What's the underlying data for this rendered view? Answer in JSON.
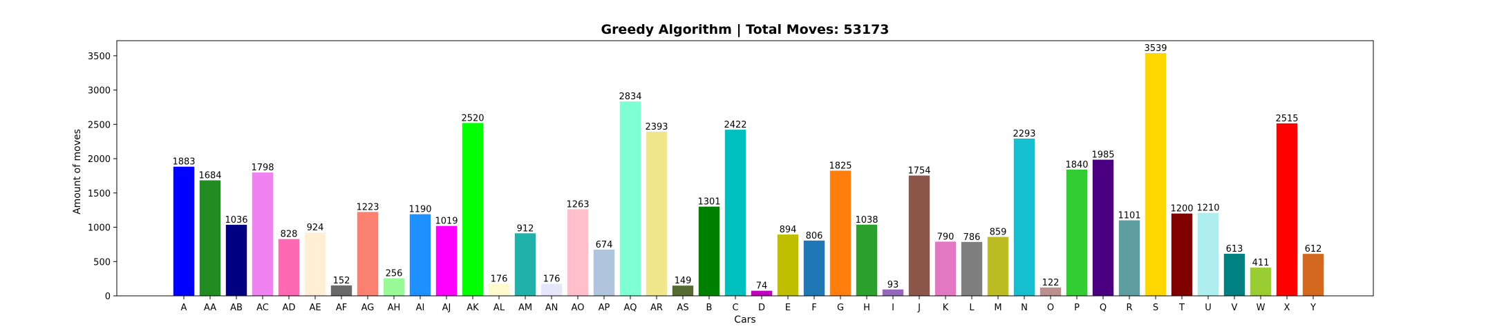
{
  "chart_data": {
    "type": "bar",
    "title": "Greedy Algorithm | Total Moves: 53173",
    "xlabel": "Cars",
    "ylabel": "Amount of moves",
    "ylim": [
      0,
      3720
    ],
    "yticks": [
      0,
      500,
      1000,
      1500,
      2000,
      2500,
      3000,
      3500
    ],
    "grid": false,
    "categories": [
      "A",
      "AA",
      "AB",
      "AC",
      "AD",
      "AE",
      "AF",
      "AG",
      "AH",
      "AI",
      "AJ",
      "AK",
      "AL",
      "AM",
      "AN",
      "AO",
      "AP",
      "AQ",
      "AR",
      "AS",
      "B",
      "C",
      "D",
      "E",
      "F",
      "G",
      "H",
      "I",
      "J",
      "K",
      "L",
      "M",
      "N",
      "O",
      "P",
      "Q",
      "R",
      "S",
      "T",
      "U",
      "V",
      "W",
      "X",
      "Y"
    ],
    "values": [
      1883,
      1684,
      1036,
      1798,
      828,
      924,
      152,
      1223,
      256,
      1190,
      1019,
      2520,
      176,
      912,
      176,
      1263,
      674,
      2834,
      2393,
      149,
      1301,
      2422,
      74,
      894,
      806,
      1825,
      1038,
      93,
      1754,
      790,
      786,
      859,
      2293,
      122,
      1840,
      1985,
      1101,
      3539,
      1200,
      1210,
      613,
      411,
      2515,
      612
    ],
    "colors": [
      "#0000ff",
      "#228b22",
      "#000080",
      "#ee82ee",
      "#ff69b4",
      "#ffefd5",
      "#696969",
      "#fa8072",
      "#98fb98",
      "#1e90ff",
      "#ff00ff",
      "#00ff00",
      "#fffacd",
      "#20b2aa",
      "#e6e6fa",
      "#ffc0cb",
      "#b0c4de",
      "#7fffd4",
      "#f0e68c",
      "#556b2f",
      "#008000",
      "#00bfbf",
      "#bf00bf",
      "#bfbf00",
      "#1f77b4",
      "#ff7f0e",
      "#2ca02c",
      "#9467bd",
      "#8c564b",
      "#e377c2",
      "#7f7f7f",
      "#bcbd22",
      "#17becf",
      "#bc8f8f",
      "#32cd32",
      "#4b0082",
      "#5f9ea0",
      "#ffd700",
      "#800000",
      "#afeeee",
      "#008080",
      "#9acd32",
      "#ff0000",
      "#d2691e"
    ]
  }
}
